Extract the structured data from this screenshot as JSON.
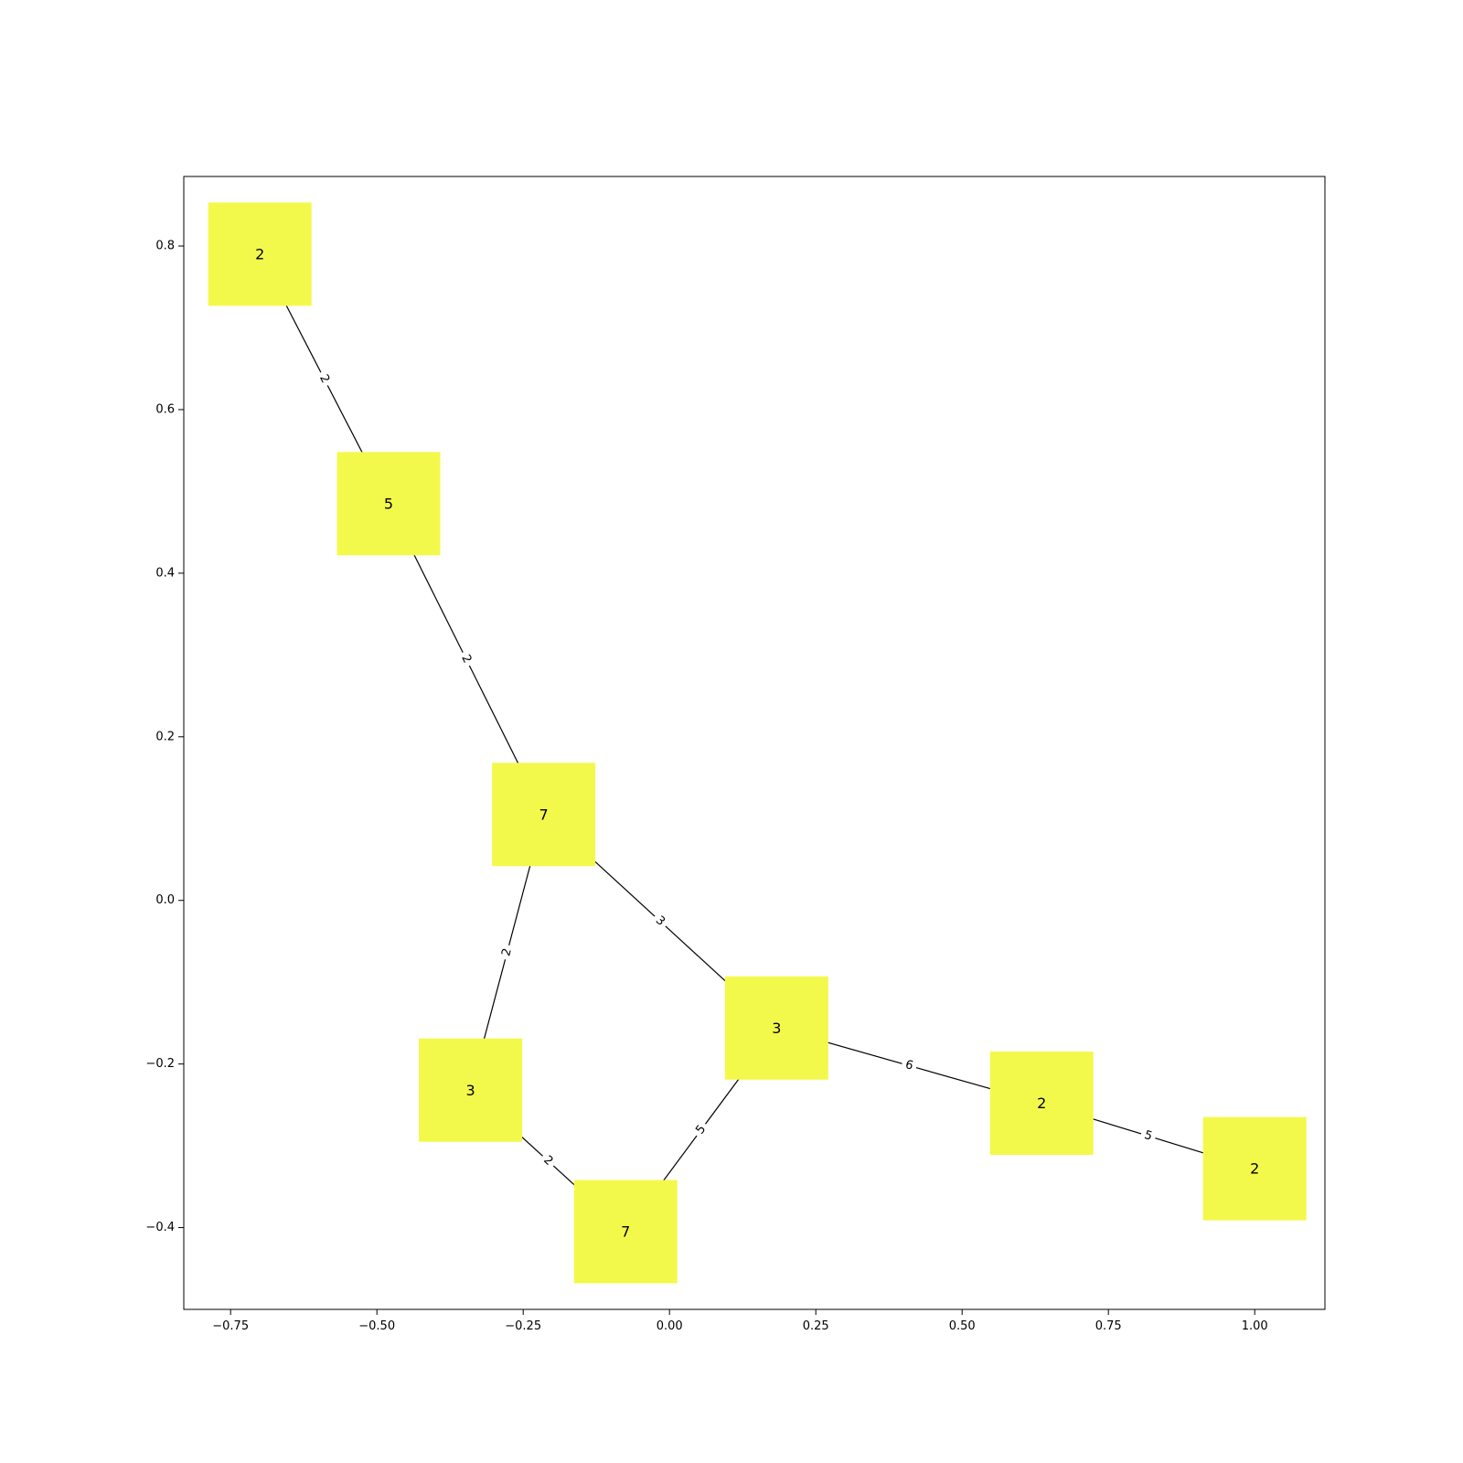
{
  "chart_data": {
    "type": "network",
    "xlim": [
      -0.83,
      1.12
    ],
    "ylim": [
      -0.5,
      0.885
    ],
    "xticks": [
      {
        "value": -0.75,
        "label": "−0.75"
      },
      {
        "value": -0.5,
        "label": "−0.50"
      },
      {
        "value": -0.25,
        "label": "−0.25"
      },
      {
        "value": 0.0,
        "label": "0.00"
      },
      {
        "value": 0.25,
        "label": "0.25"
      },
      {
        "value": 0.5,
        "label": "0.50"
      },
      {
        "value": 0.75,
        "label": "0.75"
      },
      {
        "value": 1.0,
        "label": "1.00"
      }
    ],
    "yticks": [
      {
        "value": -0.4,
        "label": "−0.4"
      },
      {
        "value": -0.2,
        "label": "−0.2"
      },
      {
        "value": 0.0,
        "label": "0.0"
      },
      {
        "value": 0.2,
        "label": "0.2"
      },
      {
        "value": 0.4,
        "label": "0.4"
      },
      {
        "value": 0.6,
        "label": "0.6"
      },
      {
        "value": 0.8,
        "label": "0.8"
      }
    ],
    "grid": false,
    "node_color": "#f3f94b",
    "node_shape": "square",
    "nodes": [
      {
        "id": "n1",
        "x": -0.7,
        "y": 0.79,
        "label": "2"
      },
      {
        "id": "n2",
        "x": -0.48,
        "y": 0.485,
        "label": "5"
      },
      {
        "id": "n3",
        "x": -0.215,
        "y": 0.105,
        "label": "7"
      },
      {
        "id": "n4",
        "x": -0.34,
        "y": -0.232,
        "label": "3"
      },
      {
        "id": "n5",
        "x": -0.075,
        "y": -0.405,
        "label": "7"
      },
      {
        "id": "n6",
        "x": 0.183,
        "y": -0.156,
        "label": "3"
      },
      {
        "id": "n7",
        "x": 0.636,
        "y": -0.248,
        "label": "2"
      },
      {
        "id": "n8",
        "x": 1.0,
        "y": -0.328,
        "label": "2"
      }
    ],
    "edges": [
      {
        "source": "n1",
        "target": "n2",
        "weight": "2"
      },
      {
        "source": "n2",
        "target": "n3",
        "weight": "2"
      },
      {
        "source": "n3",
        "target": "n4",
        "weight": "2"
      },
      {
        "source": "n3",
        "target": "n6",
        "weight": "3"
      },
      {
        "source": "n4",
        "target": "n5",
        "weight": "2"
      },
      {
        "source": "n5",
        "target": "n6",
        "weight": "5"
      },
      {
        "source": "n6",
        "target": "n7",
        "weight": "6"
      },
      {
        "source": "n7",
        "target": "n8",
        "weight": "5"
      }
    ]
  }
}
